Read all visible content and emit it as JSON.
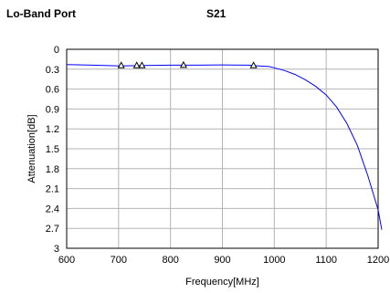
{
  "header": {
    "left_title": "Lo-Band Port",
    "right_title": "S21"
  },
  "chart_data": {
    "type": "line",
    "title": "S21",
    "xlabel": "Frequency[MHz]",
    "ylabel": "Attenuation[dB]",
    "xlim": [
      600,
      1200
    ],
    "ylim": [
      0,
      3
    ],
    "y_inverted": true,
    "x_ticks": [
      600,
      700,
      800,
      900,
      1000,
      1100,
      1200
    ],
    "y_ticks": [
      0,
      0.3,
      0.6,
      0.9,
      1.2,
      1.5,
      1.8,
      2.1,
      2.4,
      2.7,
      3
    ],
    "y_tick_labels": [
      "0",
      "0.3",
      "0.6",
      "0.9",
      "1.2",
      "1.5",
      "1.8",
      "2.1",
      "2.4",
      "2.7",
      "3"
    ],
    "grid": true,
    "series": [
      {
        "color": "#0000ff",
        "x": [
          600,
          650,
          700,
          750,
          800,
          850,
          900,
          950,
          970,
          990,
          1000,
          1020,
          1040,
          1060,
          1080,
          1100,
          1120,
          1140,
          1160,
          1180,
          1200,
          1210
        ],
        "y": [
          0.23,
          0.24,
          0.25,
          0.245,
          0.24,
          0.24,
          0.235,
          0.24,
          0.25,
          0.26,
          0.28,
          0.32,
          0.38,
          0.46,
          0.56,
          0.69,
          0.87,
          1.12,
          1.45,
          1.9,
          2.42,
          2.72
        ]
      }
    ],
    "markers": {
      "shape": "triangle",
      "x": [
        705,
        735,
        745,
        825,
        960
      ],
      "y": [
        0.245,
        0.245,
        0.245,
        0.24,
        0.245
      ]
    }
  }
}
